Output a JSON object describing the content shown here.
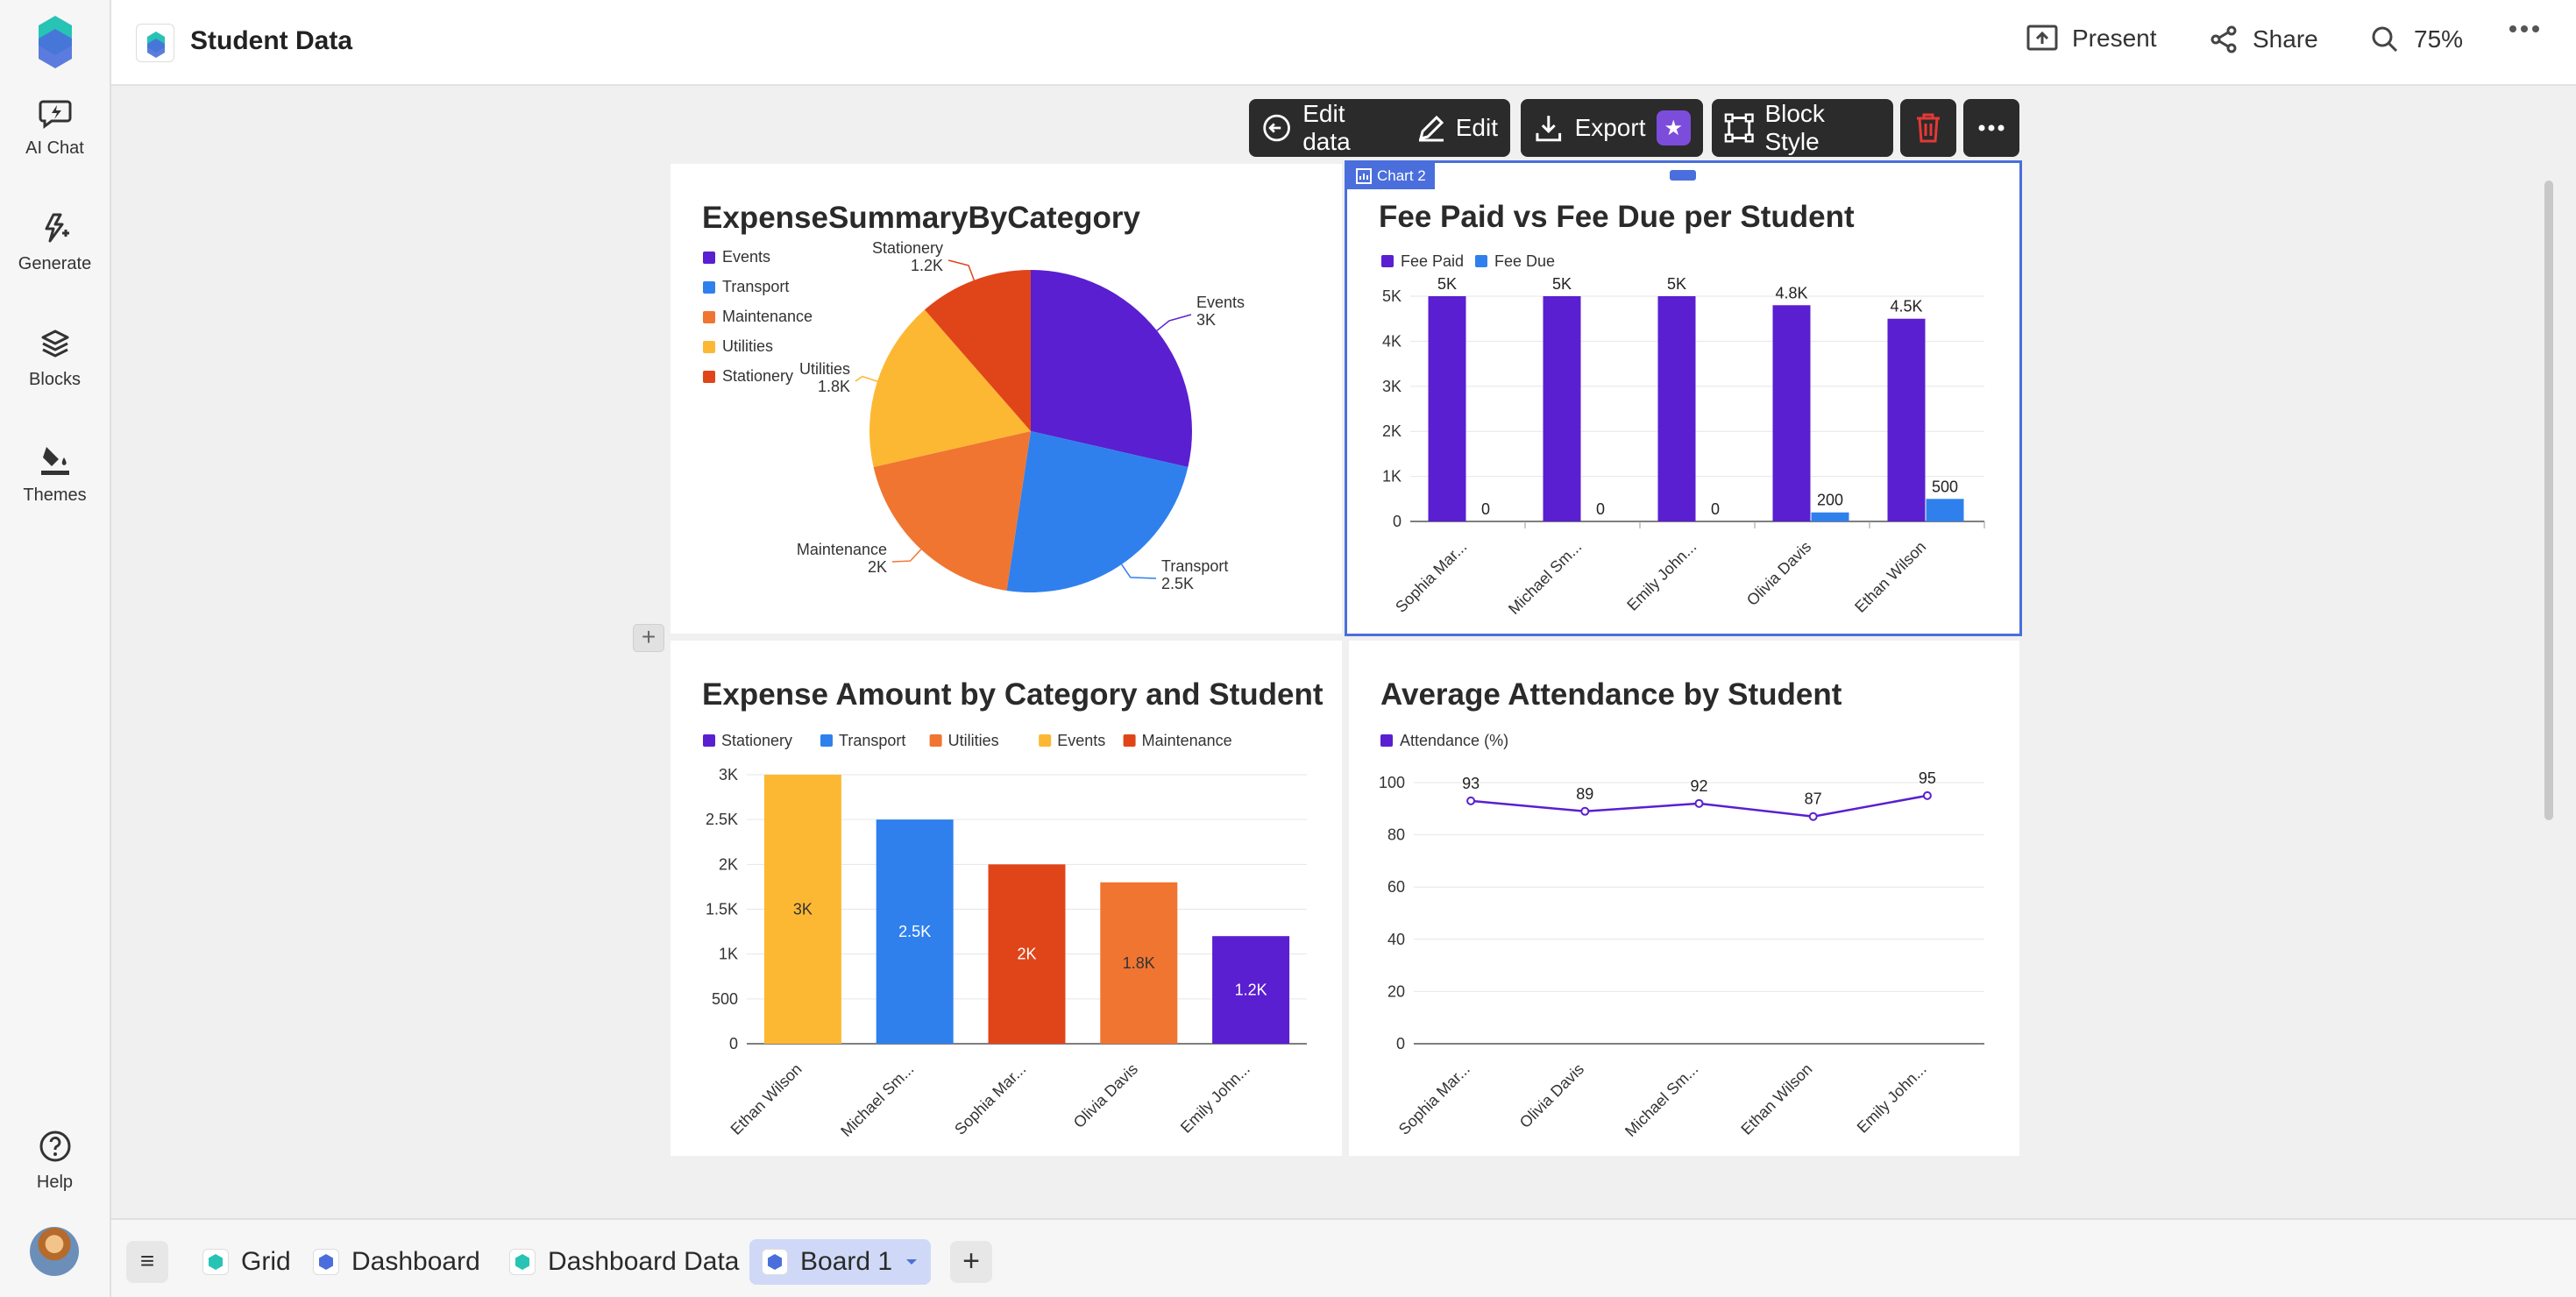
{
  "colors": {
    "purple": "#5a1fd0",
    "blue": "#2f80ed",
    "orange": "#f07531",
    "yellow": "#fdb833",
    "red": "#e0451a",
    "select": "#4a6fdc"
  },
  "header": {
    "title": "Student Data",
    "present_label": "Present",
    "share_label": "Share",
    "zoom": "75%"
  },
  "sidebar": {
    "items": [
      {
        "label": "AI Chat",
        "icon": "ai-chat-icon"
      },
      {
        "label": "Generate",
        "icon": "generate-icon"
      },
      {
        "label": "Blocks",
        "icon": "blocks-icon"
      },
      {
        "label": "Themes",
        "icon": "themes-icon"
      }
    ],
    "help_label": "Help"
  },
  "toolbar": {
    "edit_data_label": "Edit data",
    "edit_label": "Edit",
    "export_label": "Export",
    "block_style_label": "Block Style"
  },
  "selection": {
    "tag_label": "Chart 2"
  },
  "charts": {
    "chart_data": [
      {
        "type": "pie",
        "title": "ExpenseSummaryByCategory",
        "legend": [
          "Events",
          "Transport",
          "Maintenance",
          "Utilities",
          "Stationery"
        ],
        "categories": [
          "Events",
          "Transport",
          "Maintenance",
          "Utilities",
          "Stationery"
        ],
        "values": [
          3000,
          2500,
          2000,
          1800,
          1200
        ],
        "data_labels": [
          "3K",
          "2.5K",
          "2K",
          "1.8K",
          "1.2K"
        ],
        "colors": [
          "#5a1fd0",
          "#2f80ed",
          "#f07531",
          "#fdb833",
          "#e0451a"
        ]
      },
      {
        "type": "bar",
        "title": "Fee Paid vs Fee Due per Student",
        "categories": [
          "Sophia Mar...",
          "Michael Sm...",
          "Emily John...",
          "Olivia Davis",
          "Ethan Wilson"
        ],
        "series": [
          {
            "name": "Fee Paid",
            "values": [
              5000,
              5000,
              5000,
              4800,
              4500
            ],
            "labels": [
              "5K",
              "5K",
              "5K",
              "4.8K",
              "4.5K"
            ],
            "color": "#5a1fd0"
          },
          {
            "name": "Fee Due",
            "values": [
              0,
              0,
              0,
              200,
              500
            ],
            "labels": [
              "0",
              "0",
              "0",
              "200",
              "500"
            ],
            "color": "#2f80ed"
          }
        ],
        "yticks": [
          "0",
          "1K",
          "2K",
          "3K",
          "4K",
          "5K"
        ],
        "ylim": [
          0,
          5000
        ]
      },
      {
        "type": "bar",
        "title": "Expense Amount by Category and Student",
        "legend": [
          "Stationery",
          "Transport",
          "Utilities",
          "Events",
          "Maintenance"
        ],
        "legend_colors": [
          "#5a1fd0",
          "#2f80ed",
          "#f07531",
          "#fdb833",
          "#e0451a"
        ],
        "categories": [
          "Ethan Wilson",
          "Michael Sm...",
          "Sophia Mar...",
          "Olivia Davis",
          "Emily John..."
        ],
        "values": [
          3000,
          2500,
          2000,
          1800,
          1200
        ],
        "labels": [
          "3K",
          "2.5K",
          "2K",
          "1.8K",
          "1.2K"
        ],
        "bar_colors": [
          "#fdb833",
          "#2f80ed",
          "#e0451a",
          "#f07531",
          "#5a1fd0"
        ],
        "yticks": [
          "0",
          "500",
          "1K",
          "1.5K",
          "2K",
          "2.5K",
          "3K"
        ],
        "ylim": [
          0,
          3000
        ]
      },
      {
        "type": "line",
        "title": "Average Attendance by Student",
        "categories": [
          "Sophia Mar...",
          "Olivia Davis",
          "Michael Sm...",
          "Ethan Wilson",
          "Emily John..."
        ],
        "series": [
          {
            "name": "Attendance (%)",
            "values": [
              93,
              89,
              92,
              87,
              95
            ],
            "color": "#5a1fd0"
          }
        ],
        "yticks": [
          "0",
          "20",
          "40",
          "60",
          "80",
          "100"
        ],
        "ylim": [
          0,
          100
        ]
      }
    ]
  },
  "tabs": [
    {
      "label": "Grid"
    },
    {
      "label": "Dashboard"
    },
    {
      "label": "Dashboard Data"
    },
    {
      "label": "Board 1"
    }
  ]
}
